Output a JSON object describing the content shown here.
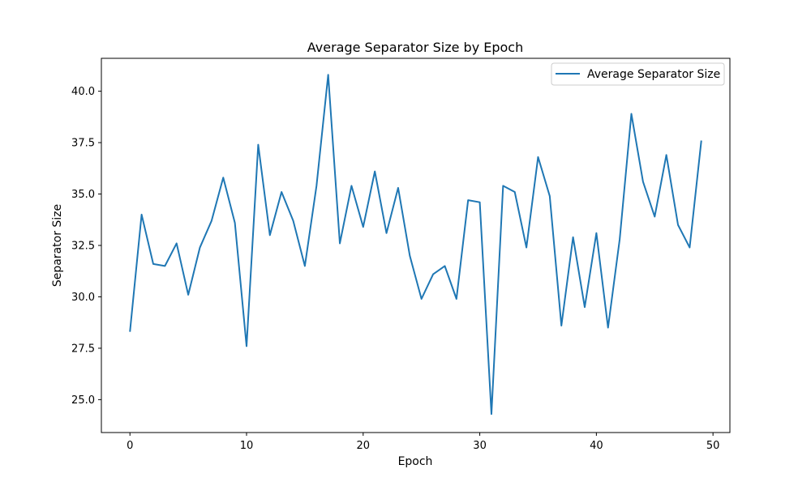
{
  "chart_data": {
    "type": "line",
    "title": "Average Separator Size by Epoch",
    "xlabel": "Epoch",
    "ylabel": "Separator Size",
    "xlim": [
      -2.45,
      51.45
    ],
    "ylim": [
      23.4,
      41.6
    ],
    "x_ticks": [
      0,
      10,
      20,
      30,
      40,
      50
    ],
    "x_tick_labels": [
      "0",
      "10",
      "20",
      "30",
      "40",
      "50"
    ],
    "y_ticks": [
      25.0,
      27.5,
      30.0,
      32.5,
      35.0,
      37.5,
      40.0
    ],
    "y_tick_labels": [
      "25.0",
      "27.5",
      "30.0",
      "32.5",
      "35.0",
      "37.5",
      "40.0"
    ],
    "grid": false,
    "legend_position": "upper-right",
    "line_color": "#1f77b4",
    "series": [
      {
        "name": "Average Separator Size",
        "x": [
          0,
          1,
          2,
          3,
          4,
          5,
          6,
          7,
          8,
          9,
          10,
          11,
          12,
          13,
          14,
          15,
          16,
          17,
          18,
          19,
          20,
          21,
          22,
          23,
          24,
          25,
          26,
          27,
          28,
          29,
          30,
          31,
          32,
          33,
          34,
          35,
          36,
          37,
          38,
          39,
          40,
          41,
          42,
          43,
          44,
          45,
          46,
          47,
          48,
          49
        ],
        "values": [
          28.3,
          34.0,
          31.6,
          31.5,
          32.6,
          30.1,
          32.4,
          33.7,
          35.8,
          33.6,
          27.6,
          37.4,
          33.0,
          35.1,
          33.7,
          31.5,
          35.4,
          40.8,
          32.6,
          35.4,
          33.4,
          36.1,
          33.1,
          35.3,
          32.0,
          29.9,
          31.1,
          31.5,
          29.9,
          34.7,
          34.6,
          24.3,
          35.4,
          35.1,
          32.4,
          36.8,
          34.9,
          28.6,
          32.9,
          29.5,
          33.1,
          28.5,
          32.8,
          38.9,
          35.6,
          33.9,
          36.9,
          33.5,
          32.4,
          37.6
        ]
      }
    ]
  }
}
